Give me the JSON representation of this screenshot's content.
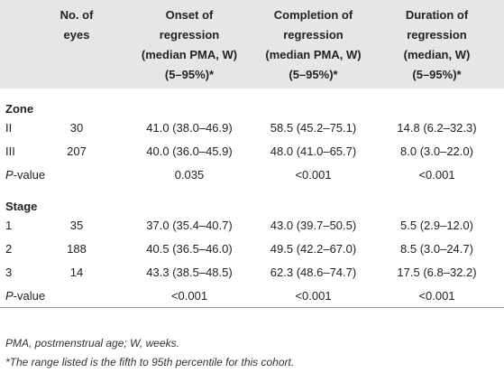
{
  "table": {
    "header": [
      "",
      "No. of\neyes",
      "Onset of\nregression\n(median PMA, W)\n(5–95%)*",
      "Completion of\nregression\n(median PMA, W)\n(5–95%)*",
      "Duration of\nregression\n(median, W)\n(5–95%)*"
    ],
    "sections": [
      {
        "title": "Zone",
        "rows": [
          [
            "II",
            "30",
            "41.0 (38.0–46.9)",
            "58.5 (45.2–75.1)",
            "14.8 (6.2–32.3)"
          ],
          [
            "III",
            "207",
            "40.0 (36.0–45.9)",
            "48.0 (41.0–65.7)",
            "8.0 (3.0–22.0)"
          ],
          [
            "P-value",
            "",
            "0.035",
            "<0.001",
            "<0.001"
          ]
        ]
      },
      {
        "title": "Stage",
        "rows": [
          [
            "1",
            "35",
            "37.0 (35.4–40.7)",
            "43.0 (39.7–50.5)",
            "5.5 (2.9–12.0)"
          ],
          [
            "2",
            "188",
            "40.5 (36.5–46.0)",
            "49.5 (42.2–67.0)",
            "8.5 (3.0–24.7)"
          ],
          [
            "3",
            "14",
            "43.3 (38.5–48.5)",
            "62.3 (48.6–74.7)",
            "17.5 (6.8–32.2)"
          ],
          [
            "P-value",
            "",
            "<0.001",
            "<0.001",
            "<0.001"
          ]
        ]
      }
    ]
  },
  "footnotes": [
    "PMA, postmenstrual age; W, weeks.",
    "*The range listed is the fifth to 95th percentile for this cohort."
  ]
}
